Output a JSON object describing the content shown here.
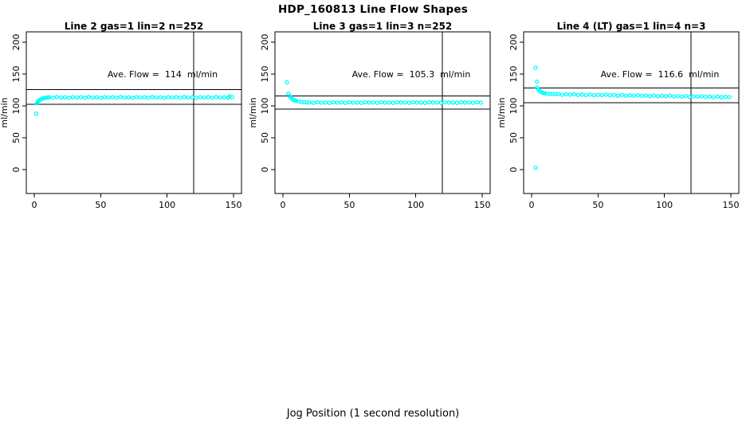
{
  "page_title": "HDP_160813  Line Flow Shapes",
  "xlabel": "Jog Position (1 second resolution)",
  "colors": {
    "points": "#00ffff",
    "axis": "#000000",
    "background": "#ffffff",
    "text": "#000000"
  },
  "chart_data": [
    {
      "type": "scatter",
      "title": "Line 2 gas=1 lin=2 n=252",
      "line_name": "Line 2",
      "gas": 1,
      "lin": 2,
      "n": 252,
      "ylabel": "ml/min",
      "annotation": "Ave. Flow =  114  ml/min",
      "ave_flow": 114,
      "x_ticks": [
        0,
        50,
        100,
        150
      ],
      "y_ticks": [
        0,
        50,
        100,
        150,
        200
      ],
      "x_range": [
        0,
        150
      ],
      "y_range": [
        0,
        200
      ],
      "grid": false,
      "legend": false,
      "ref_lines_h": [
        125.4,
        102.6
      ],
      "ref_line_v": 120,
      "points": [
        [
          1.5,
          88
        ],
        [
          2,
          104
        ],
        [
          2.5,
          106.2
        ],
        [
          3,
          107.5
        ],
        [
          3.5,
          108.3
        ],
        [
          4,
          109
        ],
        [
          5,
          110.4
        ],
        [
          6,
          111.3
        ],
        [
          7,
          112
        ],
        [
          8,
          112.5
        ],
        [
          9,
          112.9
        ],
        [
          10,
          113.2
        ],
        [
          11,
          113.7
        ],
        [
          14,
          113
        ],
        [
          17,
          114
        ],
        [
          20,
          113.2
        ],
        [
          23,
          113.5
        ],
        [
          26,
          112.8
        ],
        [
          29,
          113.8
        ],
        [
          32,
          113.3
        ],
        [
          35,
          113.7
        ],
        [
          38,
          113
        ],
        [
          41,
          114
        ],
        [
          44,
          113.2
        ],
        [
          47,
          113.5
        ],
        [
          50,
          112.8
        ],
        [
          53,
          113.8
        ],
        [
          56,
          113.3
        ],
        [
          59,
          113.7
        ],
        [
          62,
          113
        ],
        [
          65,
          114
        ],
        [
          68,
          113.2
        ],
        [
          71,
          113.5
        ],
        [
          74,
          112.8
        ],
        [
          77,
          113.8
        ],
        [
          80,
          113.3
        ],
        [
          83,
          113.7
        ],
        [
          86,
          113
        ],
        [
          89,
          114
        ],
        [
          92,
          113.2
        ],
        [
          95,
          113.5
        ],
        [
          98,
          112.8
        ],
        [
          101,
          113.8
        ],
        [
          104,
          113.3
        ],
        [
          107,
          113.7
        ],
        [
          110,
          113
        ],
        [
          113,
          114
        ],
        [
          116,
          113.2
        ],
        [
          119,
          113.5
        ],
        [
          122,
          112.8
        ],
        [
          125,
          113.8
        ],
        [
          128,
          113.3
        ],
        [
          131,
          113.7
        ],
        [
          134,
          113
        ],
        [
          137,
          114
        ],
        [
          140,
          113.2
        ],
        [
          143,
          113.5
        ],
        [
          146,
          112.8
        ],
        [
          147,
          115.3
        ],
        [
          149,
          113.8
        ]
      ]
    },
    {
      "type": "scatter",
      "title": "Line 3 gas=1 lin=3 n=252",
      "line_name": "Line 3",
      "gas": 1,
      "lin": 3,
      "n": 252,
      "ylabel": "ml/min",
      "annotation": "Ave. Flow =  105.3  ml/min",
      "ave_flow": 105.3,
      "x_ticks": [
        0,
        50,
        100,
        150
      ],
      "y_ticks": [
        0,
        50,
        100,
        150,
        200
      ],
      "x_range": [
        0,
        150
      ],
      "y_range": [
        0,
        200
      ],
      "grid": false,
      "legend": false,
      "ref_lines_h": [
        115.8,
        94.8
      ],
      "ref_line_v": 120,
      "points": [
        [
          3,
          137
        ],
        [
          4,
          119
        ],
        [
          5,
          115.5
        ],
        [
          6,
          113
        ],
        [
          7,
          111
        ],
        [
          8,
          109.5
        ],
        [
          9,
          108.5
        ],
        [
          10,
          107.8
        ],
        [
          12,
          107
        ],
        [
          14,
          106.3
        ],
        [
          16,
          105.8
        ],
        [
          18,
          105.5
        ],
        [
          20,
          105.5
        ],
        [
          23,
          104.9
        ],
        [
          26,
          105.7
        ],
        [
          29,
          105.1
        ],
        [
          32,
          105.3
        ],
        [
          35,
          104.7
        ],
        [
          38,
          105.6
        ],
        [
          41,
          105.2
        ],
        [
          44,
          105.5
        ],
        [
          47,
          104.9
        ],
        [
          50,
          105.7
        ],
        [
          53,
          105.1
        ],
        [
          56,
          105.3
        ],
        [
          59,
          104.7
        ],
        [
          62,
          105.6
        ],
        [
          65,
          105.2
        ],
        [
          68,
          105.5
        ],
        [
          71,
          104.9
        ],
        [
          74,
          105.7
        ],
        [
          77,
          105.1
        ],
        [
          80,
          105.3
        ],
        [
          83,
          104.7
        ],
        [
          86,
          105.6
        ],
        [
          89,
          105.2
        ],
        [
          92,
          105.5
        ],
        [
          95,
          104.9
        ],
        [
          98,
          105.7
        ],
        [
          101,
          105.1
        ],
        [
          104,
          105.3
        ],
        [
          107,
          104.7
        ],
        [
          110,
          105.6
        ],
        [
          113,
          105.2
        ],
        [
          116,
          105.5
        ],
        [
          119,
          104.9
        ],
        [
          122,
          105.7
        ],
        [
          125,
          105.1
        ],
        [
          128,
          105.3
        ],
        [
          131,
          104.7
        ],
        [
          134,
          105.6
        ],
        [
          137,
          105.2
        ],
        [
          140,
          105.5
        ],
        [
          143,
          104.9
        ],
        [
          146,
          105.7
        ],
        [
          149,
          105.1
        ]
      ]
    },
    {
      "type": "scatter",
      "title": "Line 4 (LT) gas=1 lin=4 n=3",
      "line_name": "Line 4 (LT)",
      "gas": 1,
      "lin": 4,
      "n": 3,
      "ylabel": "ml/min",
      "annotation": "Ave. Flow =  116.6  ml/min",
      "ave_flow": 116.6,
      "x_ticks": [
        0,
        50,
        100,
        150
      ],
      "y_ticks": [
        0,
        50,
        100,
        150,
        200
      ],
      "x_range": [
        0,
        150
      ],
      "y_range": [
        0,
        200
      ],
      "grid": false,
      "legend": false,
      "ref_lines_h": [
        128.3,
        104.9
      ],
      "ref_line_v": 120,
      "points": [
        [
          3,
          160
        ],
        [
          3,
          3
        ],
        [
          4,
          138
        ],
        [
          4,
          129
        ],
        [
          5,
          126
        ],
        [
          6,
          123.5
        ],
        [
          7,
          122
        ],
        [
          8,
          121
        ],
        [
          9,
          120.3
        ],
        [
          10,
          119.8
        ],
        [
          12,
          119.3
        ],
        [
          14,
          118.9
        ],
        [
          16,
          118.6
        ],
        [
          18,
          118.4
        ],
        [
          20,
          118.7
        ],
        [
          23,
          117.5
        ],
        [
          26,
          118.2
        ],
        [
          29,
          117.7
        ],
        [
          32,
          118.5
        ],
        [
          35,
          117.3
        ],
        [
          38,
          117.9
        ],
        [
          41,
          116.8
        ],
        [
          44,
          117.9
        ],
        [
          47,
          116.7
        ],
        [
          50,
          117.4
        ],
        [
          53,
          116.9
        ],
        [
          56,
          117.7
        ],
        [
          59,
          116.5
        ],
        [
          62,
          117.1
        ],
        [
          65,
          116
        ],
        [
          68,
          117.1
        ],
        [
          71,
          115.9
        ],
        [
          74,
          116.6
        ],
        [
          77,
          116.1
        ],
        [
          80,
          116.9
        ],
        [
          83,
          115.7
        ],
        [
          86,
          116.3
        ],
        [
          89,
          115.2
        ],
        [
          92,
          116.3
        ],
        [
          95,
          115.1
        ],
        [
          98,
          115.8
        ],
        [
          101,
          115.3
        ],
        [
          104,
          116.1
        ],
        [
          107,
          114.9
        ],
        [
          110,
          115.5
        ],
        [
          113,
          114.4
        ],
        [
          116,
          115.5
        ],
        [
          119,
          114.3
        ],
        [
          122,
          115
        ],
        [
          125,
          114.5
        ],
        [
          128,
          115.3
        ],
        [
          131,
          114.1
        ],
        [
          134,
          114.7
        ],
        [
          137,
          113.6
        ],
        [
          140,
          114.7
        ],
        [
          143,
          113.5
        ],
        [
          146,
          114.2
        ],
        [
          149,
          113.7
        ]
      ]
    }
  ]
}
